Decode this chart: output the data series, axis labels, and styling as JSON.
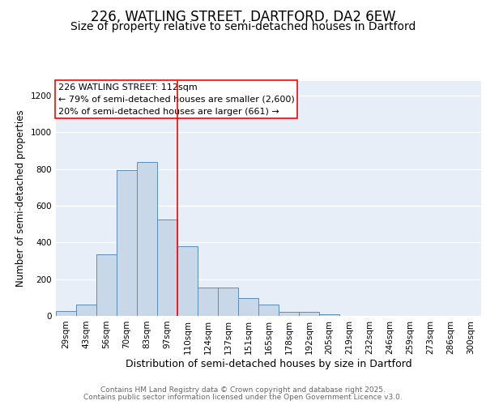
{
  "title": "226, WATLING STREET, DARTFORD, DA2 6EW",
  "subtitle": "Size of property relative to semi-detached houses in Dartford",
  "xlabel": "Distribution of semi-detached houses by size in Dartford",
  "ylabel": "Number of semi-detached properties",
  "categories": [
    "29sqm",
    "43sqm",
    "56sqm",
    "70sqm",
    "83sqm",
    "97sqm",
    "110sqm",
    "124sqm",
    "137sqm",
    "151sqm",
    "165sqm",
    "178sqm",
    "192sqm",
    "205sqm",
    "219sqm",
    "232sqm",
    "246sqm",
    "259sqm",
    "273sqm",
    "286sqm",
    "300sqm"
  ],
  "values": [
    25,
    60,
    335,
    795,
    840,
    525,
    380,
    155,
    155,
    95,
    60,
    20,
    20,
    10,
    0,
    0,
    0,
    0,
    0,
    0,
    0
  ],
  "bar_color": "#c8d8e8",
  "bar_edge_color": "#5b8db8",
  "bg_color": "#e8eef8",
  "grid_color": "#ffffff",
  "vline_color": "red",
  "annotation_text": "226 WATLING STREET: 112sqm\n← 79% of semi-detached houses are smaller (2,600)\n20% of semi-detached houses are larger (661) →",
  "annotation_box_color": "white",
  "annotation_box_edge": "red",
  "ylim": [
    0,
    1280
  ],
  "yticks": [
    0,
    200,
    400,
    600,
    800,
    1000,
    1200
  ],
  "footer_line1": "Contains HM Land Registry data © Crown copyright and database right 2025.",
  "footer_line2": "Contains public sector information licensed under the Open Government Licence v3.0.",
  "title_fontsize": 12,
  "subtitle_fontsize": 10,
  "xlabel_fontsize": 9,
  "ylabel_fontsize": 8.5,
  "tick_fontsize": 7.5,
  "annotation_fontsize": 8,
  "footer_fontsize": 6.5
}
